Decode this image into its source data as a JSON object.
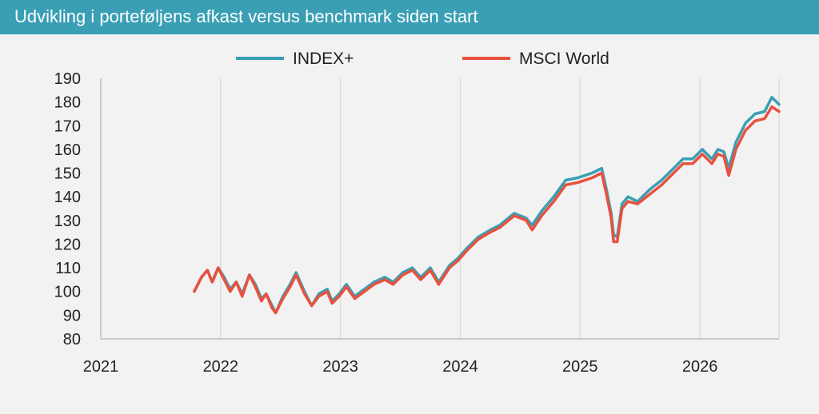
{
  "header": {
    "title": "Udvikling i porteføljens afkast versus benchmark siden start"
  },
  "chart_data": {
    "type": "line",
    "title": "Udvikling i porteføljens afkast versus benchmark siden start",
    "xlabel": "",
    "ylabel": "",
    "xlim": [
      2021.0,
      2026.66
    ],
    "ylim": [
      80,
      190
    ],
    "x_ticks": [
      "2021",
      "2022",
      "2023",
      "2024",
      "2025",
      "2026"
    ],
    "y_ticks": [
      80,
      90,
      100,
      110,
      120,
      130,
      140,
      150,
      160,
      170,
      180,
      190
    ],
    "grid": "vertical",
    "legend": {
      "position": "top"
    },
    "series": [
      {
        "name": "INDEX+",
        "color": "#3a9fb4",
        "points": [
          [
            2021.78,
            100
          ],
          [
            2021.84,
            106
          ],
          [
            2021.89,
            109
          ],
          [
            2021.93,
            104
          ],
          [
            2021.98,
            110
          ],
          [
            2022.03,
            106
          ],
          [
            2022.08,
            101
          ],
          [
            2022.13,
            104
          ],
          [
            2022.18,
            99
          ],
          [
            2022.24,
            107
          ],
          [
            2022.29,
            103
          ],
          [
            2022.34,
            97
          ],
          [
            2022.38,
            99
          ],
          [
            2022.43,
            94
          ],
          [
            2022.46,
            91
          ],
          [
            2022.52,
            98
          ],
          [
            2022.58,
            103
          ],
          [
            2022.63,
            108
          ],
          [
            2022.7,
            100
          ],
          [
            2022.76,
            94
          ],
          [
            2022.82,
            99
          ],
          [
            2022.89,
            101
          ],
          [
            2022.93,
            96
          ],
          [
            2022.99,
            99
          ],
          [
            2023.05,
            103
          ],
          [
            2023.12,
            98
          ],
          [
            2023.2,
            101
          ],
          [
            2023.28,
            104
          ],
          [
            2023.37,
            106
          ],
          [
            2023.44,
            104
          ],
          [
            2023.52,
            108
          ],
          [
            2023.6,
            110
          ],
          [
            2023.67,
            106
          ],
          [
            2023.75,
            110
          ],
          [
            2023.82,
            104
          ],
          [
            2023.91,
            111
          ],
          [
            2023.98,
            114
          ],
          [
            2024.05,
            118
          ],
          [
            2024.15,
            123
          ],
          [
            2024.25,
            126
          ],
          [
            2024.33,
            128
          ],
          [
            2024.45,
            133
          ],
          [
            2024.55,
            131
          ],
          [
            2024.6,
            128
          ],
          [
            2024.68,
            134
          ],
          [
            2024.78,
            140
          ],
          [
            2024.88,
            147
          ],
          [
            2024.98,
            148
          ],
          [
            2025.1,
            150
          ],
          [
            2025.18,
            152
          ],
          [
            2025.22,
            143
          ],
          [
            2025.26,
            133
          ],
          [
            2025.28,
            124
          ],
          [
            2025.31,
            123
          ],
          [
            2025.35,
            137
          ],
          [
            2025.4,
            140
          ],
          [
            2025.48,
            138
          ],
          [
            2025.58,
            143
          ],
          [
            2025.68,
            147
          ],
          [
            2025.78,
            152
          ],
          [
            2025.86,
            156
          ],
          [
            2025.94,
            156
          ],
          [
            2026.02,
            160
          ],
          [
            2026.1,
            156
          ],
          [
            2026.15,
            160
          ],
          [
            2026.2,
            159
          ],
          [
            2026.24,
            152
          ],
          [
            2026.3,
            163
          ],
          [
            2026.38,
            171
          ],
          [
            2026.46,
            175
          ],
          [
            2026.54,
            176
          ],
          [
            2026.6,
            182
          ],
          [
            2026.66,
            179
          ]
        ]
      },
      {
        "name": "MSCI World",
        "color": "#e8513e",
        "points": [
          [
            2021.78,
            100
          ],
          [
            2021.84,
            106
          ],
          [
            2021.89,
            109
          ],
          [
            2021.93,
            104
          ],
          [
            2021.98,
            110
          ],
          [
            2022.03,
            105
          ],
          [
            2022.08,
            100
          ],
          [
            2022.13,
            104
          ],
          [
            2022.18,
            98
          ],
          [
            2022.24,
            107
          ],
          [
            2022.29,
            102
          ],
          [
            2022.34,
            96
          ],
          [
            2022.38,
            99
          ],
          [
            2022.43,
            93
          ],
          [
            2022.46,
            91
          ],
          [
            2022.52,
            97
          ],
          [
            2022.58,
            102
          ],
          [
            2022.63,
            107
          ],
          [
            2022.7,
            99
          ],
          [
            2022.76,
            94
          ],
          [
            2022.82,
            98
          ],
          [
            2022.89,
            100
          ],
          [
            2022.93,
            95
          ],
          [
            2022.99,
            98
          ],
          [
            2023.05,
            102
          ],
          [
            2023.12,
            97
          ],
          [
            2023.2,
            100
          ],
          [
            2023.28,
            103
          ],
          [
            2023.37,
            105
          ],
          [
            2023.44,
            103
          ],
          [
            2023.52,
            107
          ],
          [
            2023.6,
            109
          ],
          [
            2023.67,
            105
          ],
          [
            2023.75,
            109
          ],
          [
            2023.82,
            103
          ],
          [
            2023.91,
            110
          ],
          [
            2023.98,
            113
          ],
          [
            2024.05,
            117
          ],
          [
            2024.15,
            122
          ],
          [
            2024.25,
            125
          ],
          [
            2024.33,
            127
          ],
          [
            2024.45,
            132
          ],
          [
            2024.55,
            130
          ],
          [
            2024.6,
            126
          ],
          [
            2024.68,
            132
          ],
          [
            2024.78,
            138
          ],
          [
            2024.88,
            145
          ],
          [
            2024.98,
            146
          ],
          [
            2025.1,
            148
          ],
          [
            2025.18,
            150
          ],
          [
            2025.22,
            141
          ],
          [
            2025.26,
            131
          ],
          [
            2025.28,
            121
          ],
          [
            2025.31,
            121
          ],
          [
            2025.35,
            135
          ],
          [
            2025.4,
            138
          ],
          [
            2025.48,
            137
          ],
          [
            2025.58,
            141
          ],
          [
            2025.68,
            145
          ],
          [
            2025.78,
            150
          ],
          [
            2025.86,
            154
          ],
          [
            2025.94,
            154
          ],
          [
            2026.02,
            158
          ],
          [
            2026.1,
            154
          ],
          [
            2026.15,
            158
          ],
          [
            2026.2,
            157
          ],
          [
            2026.24,
            149
          ],
          [
            2026.3,
            160
          ],
          [
            2026.38,
            168
          ],
          [
            2026.46,
            172
          ],
          [
            2026.54,
            173
          ],
          [
            2026.6,
            178
          ],
          [
            2026.66,
            176
          ]
        ]
      }
    ]
  }
}
